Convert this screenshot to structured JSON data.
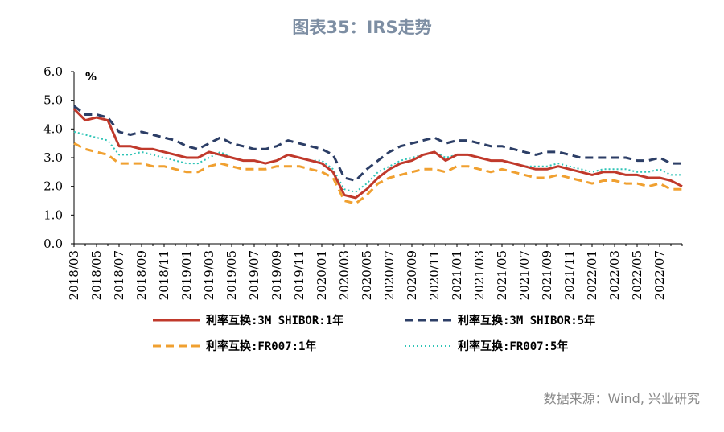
{
  "title": "图表35：IRS走势",
  "source": "数据来源：Wind, 兴业研究",
  "chart_data": {
    "type": "line",
    "unit_label": "%",
    "ylim": [
      0,
      6
    ],
    "yticks": [
      "0.0",
      "1.0",
      "2.0",
      "3.0",
      "4.0",
      "5.0",
      "6.0"
    ],
    "xticks": [
      "2018/03",
      "2018/05",
      "2018/07",
      "2018/09",
      "2018/11",
      "2019/01",
      "2019/03",
      "2019/05",
      "2019/07",
      "2019/09",
      "2019/11",
      "2020/01",
      "2020/03",
      "2020/05",
      "2020/07",
      "2020/09",
      "2020/11",
      "2021/01",
      "2021/03",
      "2021/05",
      "2021/07",
      "2021/09",
      "2021/11",
      "2022/01",
      "2022/03",
      "2022/05",
      "2022/07"
    ],
    "x_months": [
      "2018/03",
      "2018/04",
      "2018/05",
      "2018/06",
      "2018/07",
      "2018/08",
      "2018/09",
      "2018/10",
      "2018/11",
      "2018/12",
      "2019/01",
      "2019/02",
      "2019/03",
      "2019/04",
      "2019/05",
      "2019/06",
      "2019/07",
      "2019/08",
      "2019/09",
      "2019/10",
      "2019/11",
      "2019/12",
      "2020/01",
      "2020/02",
      "2020/03",
      "2020/04",
      "2020/05",
      "2020/06",
      "2020/07",
      "2020/08",
      "2020/09",
      "2020/10",
      "2020/11",
      "2020/12",
      "2021/01",
      "2021/02",
      "2021/03",
      "2021/04",
      "2021/05",
      "2021/06",
      "2021/07",
      "2021/08",
      "2021/09",
      "2021/10",
      "2021/11",
      "2021/12",
      "2022/01",
      "2022/02",
      "2022/03",
      "2022/04",
      "2022/05",
      "2022/06",
      "2022/07",
      "2022/08",
      "2022/09"
    ],
    "grid": false,
    "legend_position": "bottom",
    "series": [
      {
        "name": "利率互换:3M SHIBOR:1年",
        "color": "#c0392b",
        "style": "solid",
        "values": [
          4.7,
          4.3,
          4.4,
          4.3,
          3.4,
          3.4,
          3.3,
          3.3,
          3.2,
          3.1,
          3.0,
          3.0,
          3.2,
          3.1,
          3.0,
          2.9,
          2.9,
          2.8,
          2.9,
          3.1,
          3.0,
          2.9,
          2.8,
          2.5,
          1.7,
          1.6,
          1.9,
          2.3,
          2.6,
          2.8,
          2.9,
          3.1,
          3.2,
          2.9,
          3.1,
          3.1,
          3.0,
          2.9,
          2.9,
          2.8,
          2.7,
          2.6,
          2.6,
          2.7,
          2.6,
          2.5,
          2.4,
          2.5,
          2.5,
          2.4,
          2.4,
          2.3,
          2.3,
          2.2,
          2.0
        ]
      },
      {
        "name": "利率互换:3M SHIBOR:5年",
        "color": "#2c3e66",
        "style": "dashed",
        "values": [
          4.8,
          4.5,
          4.5,
          4.4,
          3.9,
          3.8,
          3.9,
          3.8,
          3.7,
          3.6,
          3.4,
          3.3,
          3.5,
          3.7,
          3.5,
          3.4,
          3.3,
          3.3,
          3.4,
          3.6,
          3.5,
          3.4,
          3.3,
          3.1,
          2.3,
          2.2,
          2.6,
          2.9,
          3.2,
          3.4,
          3.5,
          3.6,
          3.7,
          3.5,
          3.6,
          3.6,
          3.5,
          3.4,
          3.4,
          3.3,
          3.2,
          3.1,
          3.2,
          3.2,
          3.1,
          3.0,
          3.0,
          3.0,
          3.0,
          3.0,
          2.9,
          2.9,
          3.0,
          2.8,
          2.8
        ]
      },
      {
        "name": "利率互换:FR007:1年",
        "color": "#f0a030",
        "style": "dashed",
        "values": [
          3.5,
          3.3,
          3.2,
          3.1,
          2.8,
          2.8,
          2.8,
          2.7,
          2.7,
          2.6,
          2.5,
          2.5,
          2.7,
          2.8,
          2.7,
          2.6,
          2.6,
          2.6,
          2.7,
          2.7,
          2.7,
          2.6,
          2.5,
          2.3,
          1.5,
          1.4,
          1.7,
          2.1,
          2.3,
          2.4,
          2.5,
          2.6,
          2.6,
          2.5,
          2.7,
          2.7,
          2.6,
          2.5,
          2.6,
          2.5,
          2.4,
          2.3,
          2.3,
          2.4,
          2.3,
          2.2,
          2.1,
          2.2,
          2.2,
          2.1,
          2.1,
          2.0,
          2.1,
          1.9,
          1.9
        ]
      },
      {
        "name": "利率互换:FR007:5年",
        "color": "#2ec4b6",
        "style": "dotted",
        "values": [
          3.9,
          3.8,
          3.7,
          3.6,
          3.1,
          3.1,
          3.2,
          3.1,
          3.0,
          2.9,
          2.8,
          2.8,
          3.0,
          3.2,
          3.0,
          2.9,
          2.9,
          2.8,
          2.9,
          3.1,
          3.0,
          2.9,
          2.9,
          2.6,
          1.9,
          1.8,
          2.1,
          2.5,
          2.7,
          2.9,
          3.0,
          3.1,
          3.2,
          3.0,
          3.1,
          3.1,
          3.0,
          2.9,
          2.9,
          2.8,
          2.7,
          2.7,
          2.7,
          2.8,
          2.7,
          2.6,
          2.5,
          2.6,
          2.6,
          2.6,
          2.5,
          2.5,
          2.6,
          2.4,
          2.4
        ]
      }
    ]
  }
}
